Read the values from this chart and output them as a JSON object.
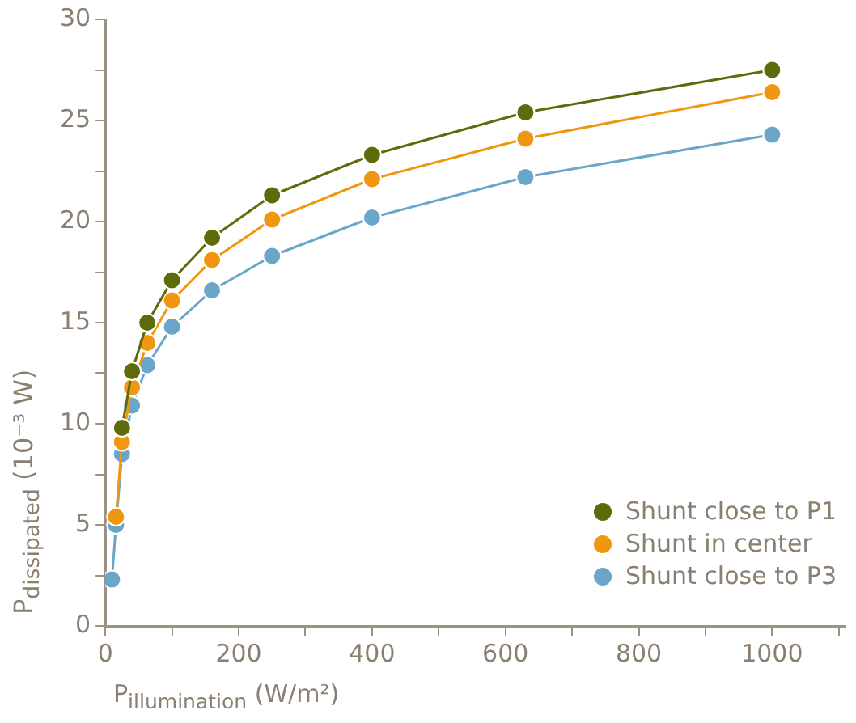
{
  "chart_data": {
    "type": "line",
    "xlabel": "P$_{illumination}$ (W/m²)",
    "ylabel": "P$_{dissipated}$ (10⁻³ W)",
    "xlim": [
      0,
      1110
    ],
    "xticks": [
      0,
      {
        "value": 100,
        "label": null
      },
      200,
      {
        "value": 300,
        "label": null
      },
      400,
      {
        "value": 500,
        "label": null
      },
      600,
      {
        "value": 700,
        "label": null
      },
      800,
      {
        "value": 900,
        "label": null
      },
      1000,
      {
        "value": 1100,
        "label": null
      }
    ],
    "ylim": [
      0,
      30
    ],
    "yticks": [
      0,
      {
        "value": 2.5,
        "label": null
      },
      5,
      {
        "value": 7.5,
        "label": null
      },
      10,
      {
        "value": 12.5,
        "label": null
      },
      15,
      {
        "value": 17.5,
        "label": null
      },
      20,
      {
        "value": 22.5,
        "label": null
      },
      25,
      {
        "value": 27.5,
        "label": null
      },
      30
    ],
    "grid": false,
    "legend": "bottom right",
    "marker": "circle",
    "line_style": "solid",
    "series": [
      {
        "name": "Shunt close to P1",
        "color": "#5f6b0a",
        "x": [
          25,
          40,
          63,
          100,
          160,
          250,
          400,
          630,
          1000
        ],
        "values": [
          9.8,
          12.6,
          15.0,
          17.1,
          19.2,
          21.3,
          23.3,
          25.4,
          27.5
        ]
      },
      {
        "name": "Shunt in center",
        "color": "#f0960f",
        "x": [
          16,
          25,
          40,
          63,
          100,
          160,
          250,
          400,
          630,
          1000
        ],
        "values": [
          5.4,
          9.1,
          11.8,
          14.0,
          16.1,
          18.1,
          20.1,
          22.1,
          24.1,
          26.4
        ]
      },
      {
        "name": "Shunt close to P3",
        "color": "#6aa6c8",
        "x": [
          10,
          16,
          25,
          40,
          63,
          100,
          160,
          250,
          400,
          630,
          1000
        ],
        "values": [
          2.3,
          5.0,
          8.5,
          10.9,
          12.9,
          14.8,
          16.6,
          18.3,
          20.2,
          22.2,
          24.3
        ]
      }
    ]
  }
}
